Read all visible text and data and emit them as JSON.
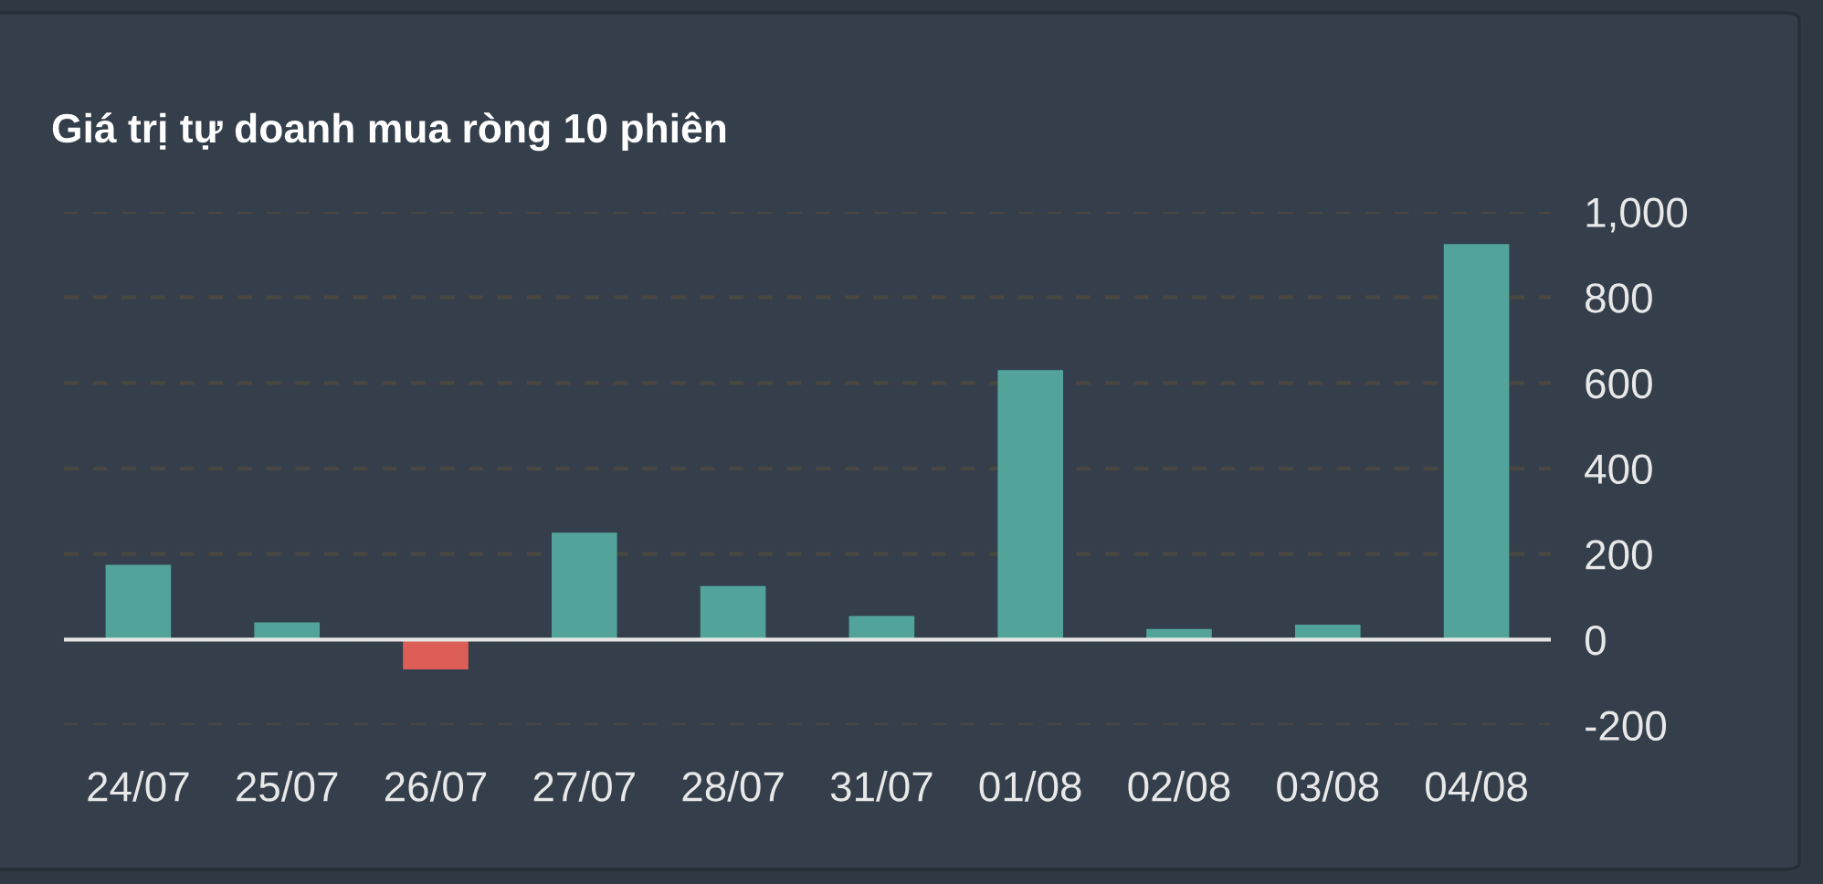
{
  "chart_data": {
    "type": "bar",
    "title": "Giá trị tự doanh mua ròng 10 phiên",
    "categories": [
      "24/07",
      "25/07",
      "26/07",
      "27/07",
      "28/07",
      "31/07",
      "01/08",
      "02/08",
      "03/08",
      "04/08"
    ],
    "values": [
      175,
      40,
      -70,
      250,
      125,
      55,
      630,
      25,
      35,
      925
    ],
    "colors": [
      "#52a49a",
      "#52a49a",
      "#dd5e56",
      "#52a49a",
      "#52a49a",
      "#52a49a",
      "#52a49a",
      "#52a49a",
      "#52a49a",
      "#52a49a"
    ],
    "ylim": [
      -200,
      1000
    ],
    "yticks": [
      -200,
      0,
      200,
      400,
      600,
      800,
      {
        "value": 1000,
        "label": "1,000"
      }
    ],
    "grid": "y",
    "ref_lines": [
      {
        "axis": "y",
        "value": 0,
        "color": "#e6e6e6"
      }
    ]
  }
}
